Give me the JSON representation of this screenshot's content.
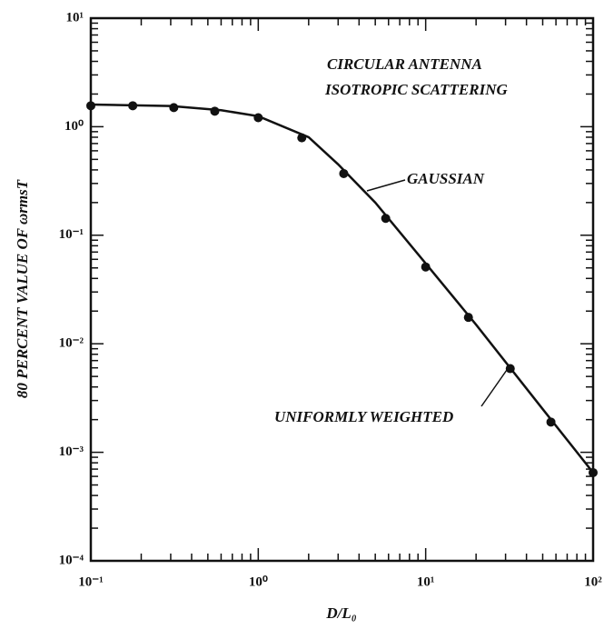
{
  "chart_data": {
    "type": "scatter",
    "annotations": [
      "CIRCULAR ANTENNA",
      "ISOTROPIC SCATTERING",
      "GAUSSIAN",
      "UNIFORMLY WEIGHTED"
    ],
    "xlabel": "D/L₀",
    "ylabel": "80 PERCENT VALUE OF ωrmsT",
    "log_x": true,
    "log_y": true,
    "xlim": [
      0.1,
      100
    ],
    "ylim": [
      0.0001,
      10
    ],
    "xticks": [
      {
        "value": 0.1,
        "label": "10⁻¹"
      },
      {
        "value": 1,
        "label": "10⁰"
      },
      {
        "value": 10,
        "label": "10¹"
      },
      {
        "value": 100,
        "label": "10²"
      }
    ],
    "yticks": [
      {
        "value": 0.0001,
        "label": "10⁻⁴"
      },
      {
        "value": 0.001,
        "label": "10⁻³"
      },
      {
        "value": 0.01,
        "label": "10⁻²"
      },
      {
        "value": 0.1,
        "label": "10⁻¹"
      },
      {
        "value": 1,
        "label": "10⁰"
      },
      {
        "value": 10,
        "label": "10¹"
      }
    ],
    "series": [
      {
        "color": "#111111",
        "style": "line",
        "x": [
          0.1,
          0.3,
          0.6,
          1,
          2,
          3,
          5,
          10,
          20,
          50,
          100
        ],
        "values": [
          1.6,
          1.55,
          1.42,
          1.25,
          0.8,
          0.45,
          0.2,
          0.055,
          0.015,
          0.0025,
          0.00065
        ]
      },
      {
        "color": "#111111",
        "style": "points",
        "x": [
          0.1,
          0.178,
          0.313,
          0.55,
          1,
          1.82,
          3.24,
          5.77,
          10,
          18,
          32,
          56,
          100
        ],
        "values": [
          1.56,
          1.56,
          1.5,
          1.39,
          1.21,
          0.79,
          0.37,
          0.143,
          0.051,
          0.0175,
          0.0059,
          0.0019,
          0.00065
        ]
      }
    ]
  }
}
